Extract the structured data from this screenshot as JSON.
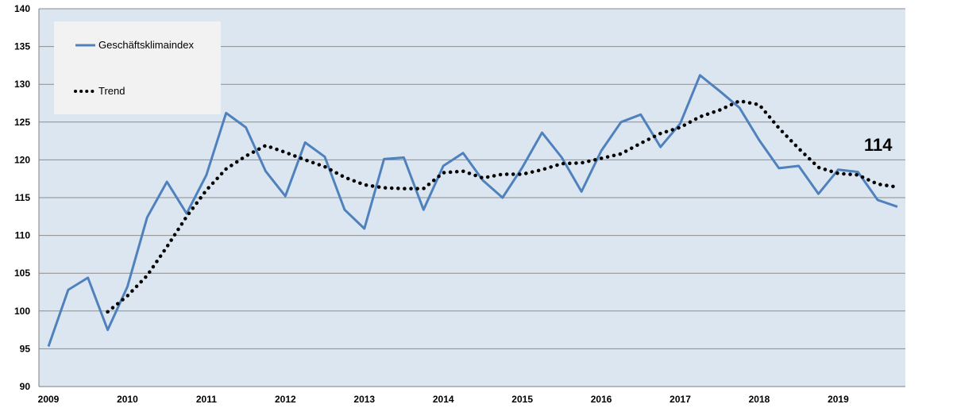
{
  "chart_data": {
    "type": "line",
    "title": "",
    "xlabel": "",
    "ylabel": "",
    "ylim": [
      90,
      140
    ],
    "y_ticks": [
      90,
      95,
      100,
      105,
      110,
      115,
      120,
      125,
      130,
      135,
      140
    ],
    "x_tick_labels": [
      "2009",
      "2010",
      "2011",
      "2012",
      "2013",
      "2014",
      "2015",
      "2016",
      "2017",
      "2018",
      "2019"
    ],
    "grid": true,
    "legend_position": "top-left",
    "background_color": "#dce6f1",
    "series": [
      {
        "name": "Geschäftsklimaindex",
        "color": "#4f81bd",
        "style": "solid",
        "values": [
          95.3,
          102.8,
          104.4,
          97.5,
          103.2,
          112.4,
          117.1,
          112.9,
          118.0,
          126.2,
          124.3,
          118.5,
          115.2,
          122.3,
          120.4,
          113.4,
          110.9,
          120.1,
          120.3,
          113.4,
          119.2,
          120.9,
          117.3,
          115.0,
          119.0,
          123.6,
          120.3,
          115.8,
          121.2,
          125.0,
          126.0,
          121.7,
          124.8,
          131.2,
          129.1,
          126.9,
          122.6,
          118.9,
          119.2,
          115.5,
          118.7,
          118.4,
          114.7,
          113.8
        ]
      },
      {
        "name": "Trend",
        "color": "#000000",
        "style": "dotted",
        "start_index": 3,
        "values": [
          99.9,
          102.0,
          104.7,
          108.5,
          112.5,
          116.0,
          118.8,
          120.5,
          121.9,
          121.0,
          120.0,
          119.1,
          117.7,
          116.7,
          116.3,
          116.2,
          116.2,
          118.3,
          118.5,
          117.6,
          118.1,
          118.1,
          118.7,
          119.5,
          119.6,
          120.2,
          120.8,
          122.2,
          123.5,
          124.3,
          125.7,
          126.6,
          127.8,
          127.3,
          124.2,
          121.5,
          119.0,
          118.2,
          118.0,
          116.8,
          116.4
        ]
      }
    ],
    "annotations": [
      {
        "text": "114"
      }
    ]
  }
}
